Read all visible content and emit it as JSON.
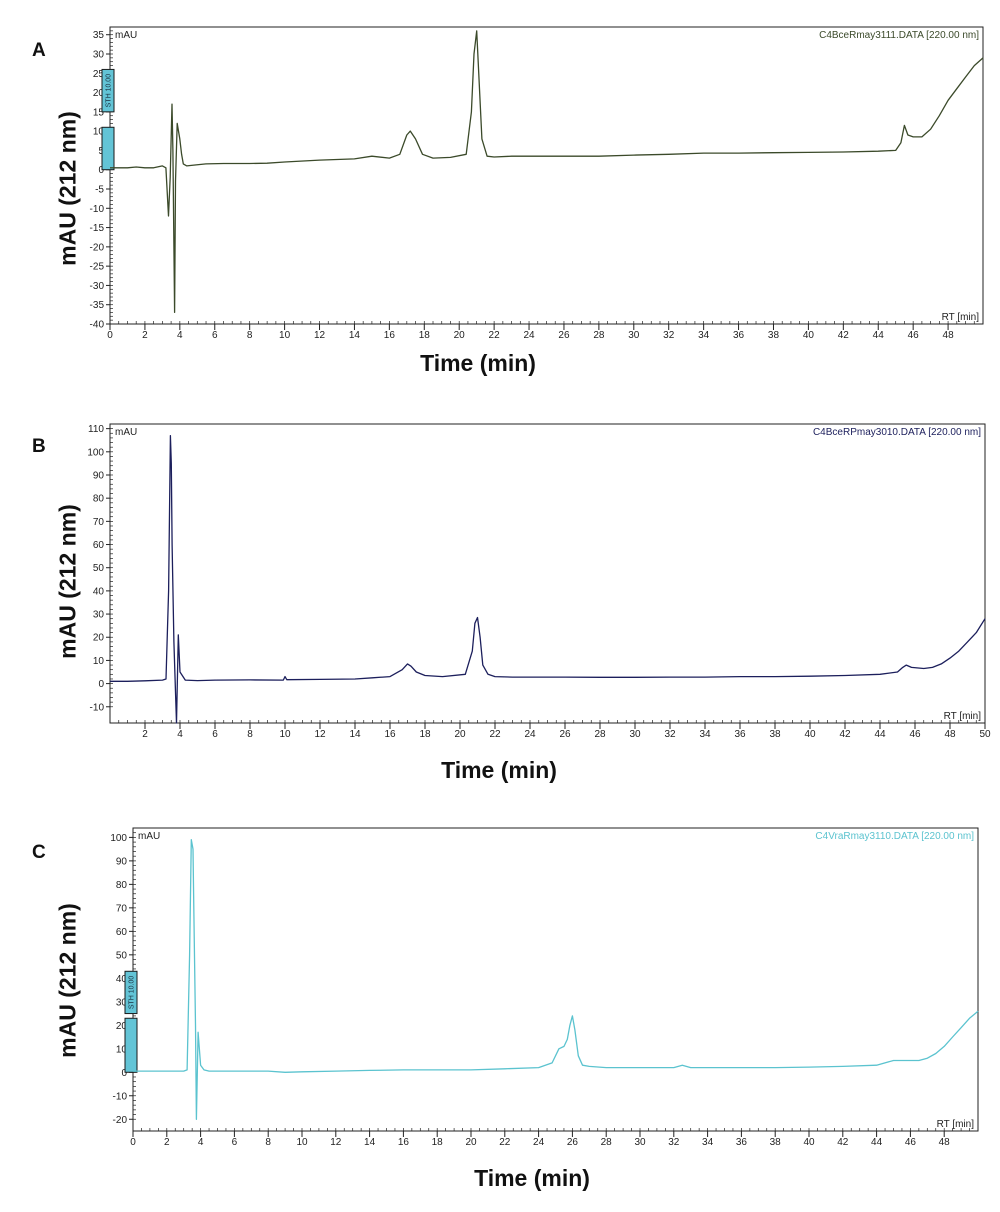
{
  "chart_data": [
    {
      "type": "line",
      "panel": "A",
      "mau_label": "mAU",
      "file_label": "C4BceRmay3111.DATA [220.00 nm]",
      "rt_label": "RT [min]",
      "xlabel": "Time (min)",
      "ylabel": "mAU (212 nm)",
      "xlim": [
        0,
        50
      ],
      "ylim": [
        -40,
        37
      ],
      "xticks": [
        0,
        2,
        4,
        6,
        8,
        10,
        12,
        14,
        16,
        18,
        20,
        22,
        24,
        26,
        28,
        30,
        32,
        34,
        36,
        38,
        40,
        42,
        44,
        46,
        48
      ],
      "yticks": [
        -40,
        -35,
        -30,
        -25,
        -20,
        -15,
        -10,
        -5,
        0,
        5,
        10,
        15,
        20,
        25,
        30,
        35
      ],
      "color": "#3b4a2a",
      "event_markers": [
        {
          "label": "STH 10.00",
          "y_from": 15,
          "y_to": 26
        },
        {
          "label": "",
          "y_from": 0,
          "y_to": 11
        }
      ],
      "series": [
        {
          "x": [
            0,
            0.5,
            1,
            1.5,
            2,
            2.5,
            3,
            3.2,
            3.35,
            3.45,
            3.55,
            3.6,
            3.7,
            3.75,
            3.85,
            4.0,
            4.1,
            4.2,
            4.4,
            4.8,
            5.5,
            6.5,
            8,
            9,
            10,
            12,
            14,
            15,
            16,
            16.6,
            17.0,
            17.2,
            17.5,
            17.9,
            18.5,
            19.5,
            20.4,
            20.7,
            20.85,
            21.0,
            21.15,
            21.3,
            21.6,
            22,
            23,
            24,
            25,
            26,
            28,
            30,
            32,
            34,
            36,
            38,
            40,
            42,
            44,
            45,
            45.3,
            45.5,
            45.7,
            46,
            46.5,
            47,
            47.5,
            48,
            48.5,
            49,
            49.5,
            50
          ],
          "y": [
            0.5,
            0.5,
            0.5,
            0.7,
            0.5,
            0.5,
            1.0,
            0.5,
            -12,
            -2,
            17,
            5,
            -37,
            -3,
            12,
            8,
            4,
            1.5,
            1,
            1.2,
            1.5,
            1.6,
            1.6,
            1.7,
            2,
            2.5,
            2.8,
            3.5,
            3,
            4,
            9,
            10,
            8,
            4,
            3,
            3.2,
            4,
            15,
            30,
            36,
            22,
            8,
            3.5,
            3.3,
            3.5,
            3.5,
            3.5,
            3.5,
            3.5,
            3.8,
            4,
            4.3,
            4.3,
            4.4,
            4.5,
            4.6,
            4.8,
            5,
            7,
            11.5,
            9,
            8.5,
            8.5,
            10.5,
            14,
            18,
            21,
            24,
            27,
            29
          ]
        }
      ]
    },
    {
      "type": "line",
      "panel": "B",
      "mau_label": "mAU",
      "file_label": "C4BceRPmay3010.DATA [220.00 nm]",
      "rt_label": "RT [min]",
      "xlabel": "Time (min)",
      "ylabel": "mAU (212 nm)",
      "xlim": [
        0,
        50
      ],
      "ylim": [
        -17,
        112
      ],
      "xticks": [
        2,
        4,
        6,
        8,
        10,
        12,
        14,
        16,
        18,
        20,
        22,
        24,
        26,
        28,
        30,
        32,
        34,
        36,
        38,
        40,
        42,
        44,
        46,
        48,
        50
      ],
      "yticks": [
        -10,
        0,
        10,
        20,
        30,
        40,
        50,
        60,
        70,
        80,
        90,
        100,
        110
      ],
      "color": "#1c1f5c",
      "event_markers": [],
      "series": [
        {
          "x": [
            0,
            1,
            2,
            3,
            3.2,
            3.35,
            3.45,
            3.5,
            3.55,
            3.65,
            3.75,
            3.8,
            3.9,
            4.0,
            4.3,
            5,
            6,
            8,
            9.9,
            10,
            10.1,
            12,
            14,
            15,
            16,
            16.7,
            17.0,
            17.2,
            17.5,
            18,
            19,
            20.3,
            20.7,
            20.85,
            21.0,
            21.15,
            21.3,
            21.6,
            22,
            23,
            24,
            26,
            28,
            30,
            32,
            34,
            36,
            38,
            40,
            42,
            44,
            45,
            45.3,
            45.5,
            45.8,
            46.5,
            47,
            47.5,
            48,
            48.5,
            49,
            49.5,
            50
          ],
          "y": [
            1,
            1,
            1.2,
            1.5,
            2,
            40,
            107,
            95,
            60,
            18,
            -5,
            -17,
            21,
            5,
            1.5,
            1.3,
            1.5,
            1.6,
            1.5,
            3,
            1.7,
            1.8,
            2,
            2.5,
            3,
            6,
            8.5,
            7.5,
            5,
            3.5,
            3,
            4,
            14,
            26,
            28.5,
            20,
            8,
            4,
            3,
            2.8,
            2.8,
            2.8,
            2.7,
            2.7,
            2.8,
            2.8,
            3,
            3,
            3.2,
            3.5,
            4,
            5,
            7,
            8,
            7,
            6.5,
            7,
            8.5,
            11,
            14,
            18,
            22,
            28
          ]
        }
      ]
    },
    {
      "type": "line",
      "panel": "C",
      "mau_label": "mAU",
      "file_label": "C4VraRmay3110.DATA [220.00 nm]",
      "rt_label": "RT [min]",
      "xlabel": "Time (min)",
      "ylabel": "mAU (212 nm)",
      "xlim": [
        0,
        50
      ],
      "ylim": [
        -25,
        104
      ],
      "xticks": [
        0,
        2,
        4,
        6,
        8,
        10,
        12,
        14,
        16,
        18,
        20,
        22,
        24,
        26,
        28,
        30,
        32,
        34,
        36,
        38,
        40,
        42,
        44,
        46,
        48
      ],
      "yticks": [
        -20,
        -10,
        0,
        10,
        20,
        30,
        40,
        50,
        60,
        70,
        80,
        90,
        100
      ],
      "color": "#5bc3cf",
      "event_markers": [
        {
          "label": "STH 10.00",
          "y_from": 25,
          "y_to": 43
        },
        {
          "label": "",
          "y_from": 0,
          "y_to": 23
        }
      ],
      "series": [
        {
          "x": [
            0,
            1,
            2,
            3,
            3.2,
            3.35,
            3.45,
            3.55,
            3.6,
            3.7,
            3.75,
            3.85,
            4.0,
            4.2,
            4.5,
            5,
            6,
            8,
            9,
            10,
            12,
            14,
            16,
            18,
            20,
            22,
            24,
            24.8,
            25.2,
            25.5,
            25.7,
            25.85,
            26.0,
            26.15,
            26.35,
            26.6,
            27,
            28,
            30,
            32,
            32.5,
            33,
            34,
            36,
            38,
            40,
            42,
            44,
            45,
            46,
            46.5,
            47,
            47.5,
            48,
            48.5,
            49,
            49.5,
            50
          ],
          "y": [
            0.5,
            0.5,
            0.5,
            0.5,
            1,
            50,
            99,
            95,
            70,
            20,
            -20,
            17,
            3,
            1,
            0.5,
            0.5,
            0.5,
            0.5,
            0,
            0.2,
            0.5,
            0.8,
            1,
            1,
            1,
            1.5,
            2,
            4,
            10,
            11,
            14,
            20,
            24,
            18,
            7,
            3,
            2.5,
            2,
            2,
            2,
            3,
            2,
            2,
            2,
            2,
            2.2,
            2.5,
            3,
            5,
            5,
            5,
            6,
            8,
            11,
            15,
            19,
            23,
            26
          ]
        }
      ]
    }
  ]
}
